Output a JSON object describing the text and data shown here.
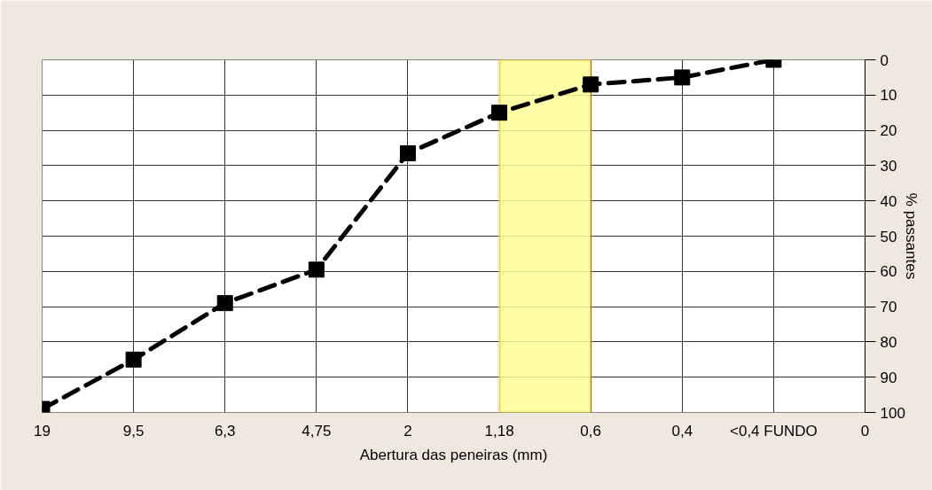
{
  "chart_data": {
    "type": "line",
    "xlabel": "Abertura das peneiras (mm)",
    "ylabel": "% passantes",
    "categories": [
      "19",
      "9,5",
      "6,3",
      "4,75",
      "2",
      "1,18",
      "0,6",
      "0,4",
      "<0,4 FUNDO",
      "0"
    ],
    "series": [
      {
        "color": "#000000",
        "values": [
          99,
          85,
          69,
          59.5,
          26.5,
          15,
          7,
          5,
          0,
          null
        ]
      }
    ],
    "ylim": [
      100,
      0
    ],
    "yticks": [
      0,
      10,
      20,
      30,
      40,
      50,
      60,
      70,
      80,
      90,
      100
    ],
    "bands": [
      {
        "axis": "x",
        "from": "1,18",
        "to": "0,6",
        "color": "#ffff99"
      }
    ],
    "grid": true,
    "marker": "square",
    "line_style": "dashed"
  }
}
